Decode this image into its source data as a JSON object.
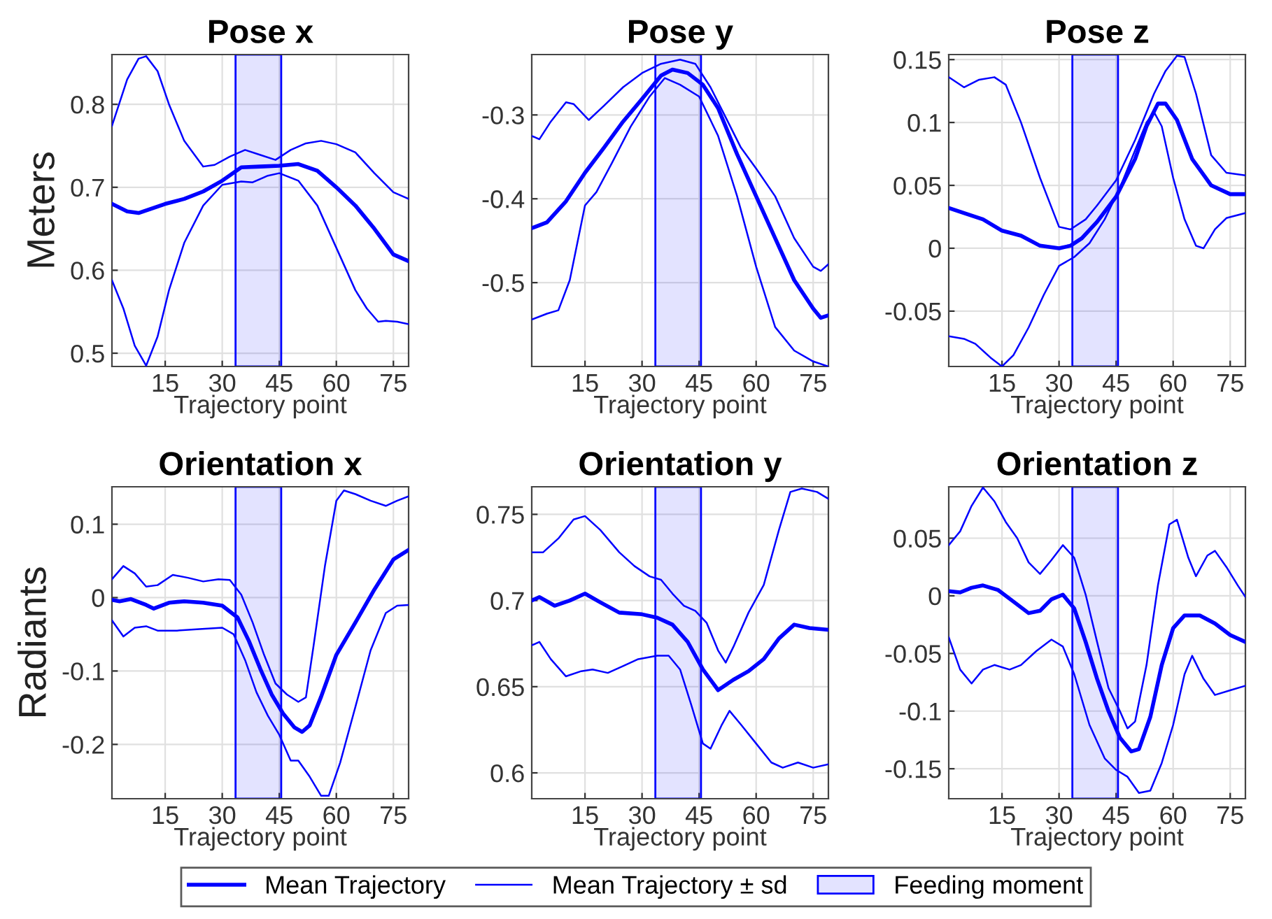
{
  "chart_data": [
    {
      "type": "line",
      "title": "Pose x",
      "xlabel": "Trajectory point",
      "ylabel": "Meters",
      "xlim": [
        1,
        79
      ],
      "xticks": [
        15,
        30,
        45,
        60,
        75
      ],
      "ylim": [
        0.484,
        0.86
      ],
      "yticks": [
        0.5,
        0.6,
        0.7,
        0.8
      ],
      "grid": true,
      "legend": "bottom",
      "bands": [
        {
          "axis": "x",
          "from": 33.5,
          "to": 45.5,
          "label": "Feeding moment",
          "color": "#0000ff"
        }
      ],
      "series": [
        {
          "name": "Mean Trajectory",
          "color": "#0000ff",
          "x": [
            1,
            5,
            8,
            15,
            20,
            25,
            30,
            35,
            40,
            45,
            50,
            55,
            60,
            65,
            70,
            75,
            79
          ],
          "values": [
            0.68,
            0.671,
            0.669,
            0.68,
            0.686,
            0.695,
            0.708,
            0.724,
            0.725,
            0.726,
            0.728,
            0.72,
            0.7,
            0.678,
            0.65,
            0.619,
            0.611
          ]
        },
        {
          "name": "Mean Trajectory ± sd",
          "color": "#0000ff",
          "x": [
            1,
            5,
            8,
            10,
            13,
            16,
            20,
            25,
            28,
            32,
            36,
            40,
            44,
            48,
            52,
            56,
            60,
            65,
            70,
            75,
            79
          ],
          "values": [
            0.774,
            0.83,
            0.855,
            0.858,
            0.84,
            0.8,
            0.756,
            0.725,
            0.727,
            0.737,
            0.745,
            0.739,
            0.733,
            0.745,
            0.753,
            0.756,
            0.752,
            0.742,
            0.717,
            0.694,
            0.686
          ]
        },
        {
          "color": "#0000ff",
          "x": [
            1,
            4,
            7,
            10,
            13,
            16,
            20,
            25,
            30,
            35,
            38,
            42,
            45,
            50,
            55,
            60,
            65,
            68,
            71,
            73,
            76,
            79
          ],
          "values": [
            0.588,
            0.554,
            0.509,
            0.485,
            0.52,
            0.576,
            0.633,
            0.678,
            0.703,
            0.707,
            0.706,
            0.714,
            0.717,
            0.708,
            0.678,
            0.627,
            0.576,
            0.554,
            0.538,
            0.539,
            0.538,
            0.535
          ]
        }
      ]
    },
    {
      "type": "line",
      "title": "Pose y",
      "xlabel": "Trajectory point",
      "xlim": [
        1,
        79
      ],
      "xticks": [
        15,
        30,
        45,
        60,
        75
      ],
      "ylim": [
        -0.6,
        -0.228
      ],
      "yticks": [
        -0.5,
        -0.4,
        -0.3
      ],
      "grid": true,
      "bands": [
        {
          "axis": "x",
          "from": 33.5,
          "to": 45.5,
          "color": "#0000ff"
        }
      ],
      "series": [
        {
          "color": "#0000ff",
          "x": [
            1,
            5,
            10,
            15,
            20,
            25,
            30,
            35,
            38,
            42,
            46,
            50,
            55,
            60,
            65,
            70,
            75,
            77,
            79
          ],
          "values": [
            -0.435,
            -0.428,
            -0.403,
            -0.369,
            -0.339,
            -0.308,
            -0.281,
            -0.253,
            -0.246,
            -0.25,
            -0.264,
            -0.292,
            -0.347,
            -0.397,
            -0.447,
            -0.497,
            -0.531,
            -0.542,
            -0.539
          ]
        },
        {
          "color": "#0000ff",
          "x": [
            1,
            3,
            6,
            10,
            12,
            16,
            20,
            25,
            30,
            35,
            40,
            44,
            48,
            52,
            56,
            60,
            65,
            70,
            75,
            77,
            79
          ],
          "values": [
            -0.325,
            -0.329,
            -0.308,
            -0.285,
            -0.287,
            -0.306,
            -0.289,
            -0.267,
            -0.25,
            -0.239,
            -0.234,
            -0.239,
            -0.267,
            -0.303,
            -0.339,
            -0.364,
            -0.397,
            -0.447,
            -0.481,
            -0.486,
            -0.478
          ]
        },
        {
          "color": "#0000ff",
          "x": [
            1,
            5,
            8,
            11,
            15,
            18,
            22,
            27,
            32,
            36,
            40,
            45,
            50,
            55,
            60,
            65,
            70,
            75,
            79
          ],
          "values": [
            -0.544,
            -0.537,
            -0.533,
            -0.497,
            -0.408,
            -0.392,
            -0.358,
            -0.314,
            -0.278,
            -0.256,
            -0.264,
            -0.278,
            -0.325,
            -0.397,
            -0.481,
            -0.553,
            -0.581,
            -0.594,
            -0.6
          ]
        }
      ]
    },
    {
      "type": "line",
      "title": "Pose z",
      "xlabel": "Trajectory point",
      "xlim": [
        1,
        79
      ],
      "xticks": [
        15,
        30,
        45,
        60,
        75
      ],
      "ylim": [
        -0.094,
        0.154
      ],
      "yticks": [
        -0.05,
        0,
        0.05,
        0.1,
        0.15
      ],
      "grid": true,
      "bands": [
        {
          "axis": "x",
          "from": 33.5,
          "to": 45.5,
          "color": "#0000ff"
        }
      ],
      "series": [
        {
          "color": "#0000ff",
          "x": [
            1,
            5,
            10,
            15,
            20,
            25,
            30,
            33,
            36,
            40,
            45,
            50,
            53,
            56,
            58,
            61,
            65,
            70,
            75,
            79
          ],
          "values": [
            0.032,
            0.028,
            0.023,
            0.014,
            0.01,
            0.002,
            0.0,
            0.002,
            0.008,
            0.021,
            0.041,
            0.071,
            0.097,
            0.115,
            0.115,
            0.102,
            0.071,
            0.05,
            0.043,
            0.043
          ]
        },
        {
          "color": "#0000ff",
          "x": [
            1,
            5,
            9,
            13,
            16,
            20,
            25,
            30,
            33,
            37,
            40,
            45,
            50,
            55,
            58,
            61,
            63,
            66,
            70,
            74,
            79
          ],
          "values": [
            0.136,
            0.128,
            0.134,
            0.136,
            0.13,
            0.1,
            0.056,
            0.017,
            0.015,
            0.023,
            0.034,
            0.054,
            0.086,
            0.123,
            0.141,
            0.153,
            0.152,
            0.123,
            0.074,
            0.06,
            0.058
          ]
        },
        {
          "color": "#0000ff",
          "x": [
            1,
            5,
            8,
            12,
            15,
            18,
            22,
            26,
            30,
            34,
            38,
            42,
            46,
            50,
            53,
            55,
            57,
            60,
            63,
            66,
            68,
            71,
            74,
            79
          ],
          "values": [
            -0.07,
            -0.072,
            -0.076,
            -0.087,
            -0.094,
            -0.085,
            -0.063,
            -0.037,
            -0.014,
            -0.007,
            0.004,
            0.023,
            0.048,
            0.078,
            0.1,
            0.108,
            0.097,
            0.056,
            0.023,
            0.002,
            0.0,
            0.015,
            0.024,
            0.028
          ]
        }
      ]
    },
    {
      "type": "line",
      "title": "Orientation x",
      "xlabel": "Trajectory point",
      "ylabel": "Radiants",
      "xlim": [
        1,
        79
      ],
      "xticks": [
        15,
        30,
        45,
        60,
        75
      ],
      "ylim": [
        -0.274,
        0.151
      ],
      "yticks": [
        -0.2,
        -0.1,
        0,
        0.1
      ],
      "grid": true,
      "bands": [
        {
          "axis": "x",
          "from": 33.5,
          "to": 45.5,
          "color": "#0000ff"
        }
      ],
      "series": [
        {
          "color": "#0000ff",
          "x": [
            1,
            3,
            6,
            10,
            12,
            16,
            20,
            25,
            30,
            34,
            37,
            40,
            43,
            46,
            49,
            51,
            53,
            56,
            60,
            65,
            70,
            75,
            79
          ],
          "values": [
            -0.003,
            -0.005,
            -0.002,
            -0.01,
            -0.015,
            -0.007,
            -0.005,
            -0.007,
            -0.011,
            -0.027,
            -0.059,
            -0.097,
            -0.132,
            -0.158,
            -0.177,
            -0.183,
            -0.174,
            -0.135,
            -0.078,
            -0.034,
            0.011,
            0.052,
            0.065
          ]
        },
        {
          "color": "#0000ff",
          "x": [
            1,
            4,
            7,
            10,
            13,
            17,
            21,
            25,
            29,
            32,
            35,
            38,
            41,
            44,
            47,
            50,
            52,
            54,
            57,
            60,
            62,
            65,
            69,
            73,
            76,
            79
          ],
          "values": [
            0.025,
            0.043,
            0.033,
            0.015,
            0.017,
            0.031,
            0.027,
            0.022,
            0.025,
            0.024,
            0.004,
            -0.034,
            -0.078,
            -0.117,
            -0.132,
            -0.142,
            -0.136,
            -0.066,
            0.043,
            0.132,
            0.146,
            0.141,
            0.132,
            0.125,
            0.132,
            0.138
          ]
        },
        {
          "color": "#0000ff",
          "x": [
            1,
            4,
            7,
            10,
            13,
            18,
            24,
            30,
            33,
            36,
            39,
            42,
            45,
            48,
            50,
            53,
            56,
            58,
            61,
            65,
            69,
            73,
            76,
            79
          ],
          "values": [
            -0.031,
            -0.053,
            -0.041,
            -0.039,
            -0.045,
            -0.045,
            -0.043,
            -0.041,
            -0.05,
            -0.085,
            -0.129,
            -0.161,
            -0.187,
            -0.222,
            -0.222,
            -0.244,
            -0.27,
            -0.27,
            -0.225,
            -0.149,
            -0.072,
            -0.021,
            -0.011,
            -0.01
          ]
        }
      ]
    },
    {
      "type": "line",
      "title": "Orientation y",
      "xlabel": "Trajectory point",
      "xlim": [
        1,
        79
      ],
      "xticks": [
        15,
        30,
        45,
        60,
        75
      ],
      "ylim": [
        0.585,
        0.766
      ],
      "yticks": [
        0.6,
        0.65,
        0.7,
        0.75
      ],
      "grid": true,
      "bands": [
        {
          "axis": "x",
          "from": 33.5,
          "to": 45.5,
          "color": "#0000ff"
        }
      ],
      "series": [
        {
          "color": "#0000ff",
          "x": [
            1,
            3,
            7,
            11,
            15,
            19,
            24,
            30,
            34,
            38,
            42,
            46,
            50,
            54,
            58,
            62,
            66,
            70,
            74,
            79
          ],
          "values": [
            0.7,
            0.702,
            0.697,
            0.7,
            0.704,
            0.699,
            0.693,
            0.692,
            0.69,
            0.686,
            0.676,
            0.66,
            0.648,
            0.654,
            0.659,
            0.666,
            0.678,
            0.686,
            0.684,
            0.683
          ]
        },
        {
          "color": "#0000ff",
          "x": [
            1,
            4,
            8,
            12,
            15,
            19,
            24,
            28,
            32,
            35,
            38,
            41,
            44,
            47,
            50,
            52,
            54,
            58,
            62,
            66,
            69,
            72,
            76,
            79
          ],
          "values": [
            0.728,
            0.728,
            0.736,
            0.747,
            0.749,
            0.741,
            0.728,
            0.72,
            0.714,
            0.712,
            0.704,
            0.697,
            0.694,
            0.687,
            0.671,
            0.664,
            0.673,
            0.693,
            0.709,
            0.741,
            0.763,
            0.765,
            0.763,
            0.759
          ]
        },
        {
          "color": "#0000ff",
          "x": [
            1,
            3,
            6,
            10,
            14,
            17,
            21,
            25,
            29,
            34,
            37,
            40,
            43,
            46,
            48,
            51,
            53,
            56,
            60,
            64,
            67,
            71,
            75,
            79
          ],
          "values": [
            0.674,
            0.676,
            0.666,
            0.656,
            0.659,
            0.66,
            0.658,
            0.662,
            0.666,
            0.668,
            0.668,
            0.66,
            0.639,
            0.617,
            0.614,
            0.628,
            0.636,
            0.628,
            0.617,
            0.606,
            0.603,
            0.606,
            0.603,
            0.605
          ]
        }
      ]
    },
    {
      "type": "line",
      "title": "Orientation z",
      "xlabel": "Trajectory point",
      "xlim": [
        1,
        79
      ],
      "xticks": [
        15,
        30,
        45,
        60,
        75
      ],
      "ylim": [
        -0.176,
        0.0946
      ],
      "yticks": [
        -0.15,
        -0.1,
        -0.05,
        0,
        0.05
      ],
      "grid": true,
      "bands": [
        {
          "axis": "x",
          "from": 33.5,
          "to": 45.5,
          "color": "#0000ff"
        }
      ],
      "series": [
        {
          "color": "#0000ff",
          "x": [
            1,
            4,
            7,
            10,
            14,
            18,
            22,
            25,
            28,
            31,
            34,
            37,
            40,
            43,
            46,
            49,
            51,
            54,
            57,
            60,
            63,
            67,
            71,
            75,
            79
          ],
          "values": [
            0.004,
            0.003,
            0.007,
            0.009,
            0.005,
            -0.005,
            -0.015,
            -0.013,
            -0.003,
            0.001,
            -0.011,
            -0.04,
            -0.072,
            -0.1,
            -0.123,
            -0.135,
            -0.133,
            -0.105,
            -0.06,
            -0.028,
            -0.017,
            -0.017,
            -0.024,
            -0.034,
            -0.04
          ]
        },
        {
          "color": "#0000ff",
          "x": [
            1,
            4,
            7,
            10,
            13,
            16,
            19,
            22,
            25,
            28,
            31,
            34,
            37,
            40,
            43,
            46,
            48,
            50,
            53,
            56,
            59,
            61,
            64,
            66,
            69,
            71,
            74,
            77,
            79
          ],
          "values": [
            0.044,
            0.056,
            0.078,
            0.094,
            0.082,
            0.064,
            0.05,
            0.029,
            0.019,
            0.031,
            0.044,
            0.033,
            0.001,
            -0.04,
            -0.08,
            -0.1,
            -0.115,
            -0.109,
            -0.06,
            0.009,
            0.062,
            0.066,
            0.033,
            0.017,
            0.035,
            0.039,
            0.025,
            0.009,
            -0.001
          ]
        },
        {
          "color": "#0000ff",
          "x": [
            1,
            4,
            7,
            10,
            13,
            17,
            20,
            24,
            28,
            31,
            34,
            38,
            42,
            45,
            48,
            51,
            54,
            57,
            60,
            63,
            65,
            68,
            71,
            75,
            79
          ],
          "values": [
            -0.036,
            -0.064,
            -0.076,
            -0.064,
            -0.06,
            -0.064,
            -0.06,
            -0.048,
            -0.038,
            -0.044,
            -0.068,
            -0.112,
            -0.141,
            -0.151,
            -0.157,
            -0.171,
            -0.169,
            -0.145,
            -0.112,
            -0.068,
            -0.052,
            -0.072,
            -0.086,
            -0.082,
            -0.078
          ]
        }
      ]
    }
  ]
}
